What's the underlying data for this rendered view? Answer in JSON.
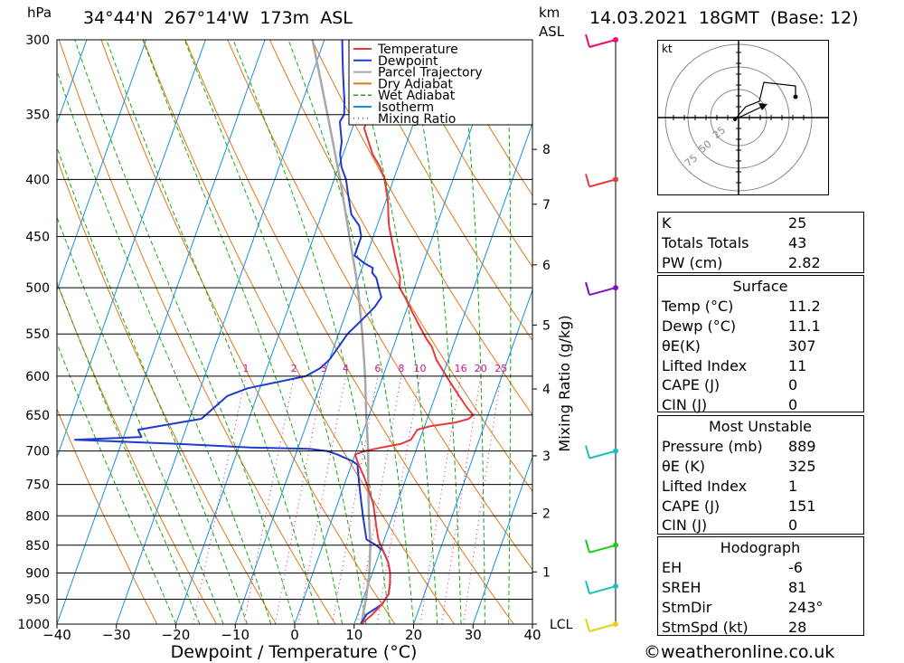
{
  "header": {
    "left_unit": "hPa",
    "location": "34°44'N  267°14'W  173m  ASL",
    "km_label": "km",
    "asl_label": "ASL",
    "datetime": "14.03.2021  18GMT  (Base: 12)"
  },
  "chart_data": {
    "type": "line",
    "xlabel": "Dewpoint / Temperature (°C)",
    "ylabel": "Mixing Ratio (g/kg)",
    "x_ticks": [
      -40,
      -30,
      -20,
      -10,
      0,
      10,
      20,
      30,
      40
    ],
    "xlim": [
      -40,
      40
    ],
    "pressure_levels": [
      300,
      350,
      400,
      450,
      500,
      550,
      600,
      650,
      700,
      750,
      800,
      850,
      900,
      950,
      1000
    ],
    "ylim_hpa": [
      1000,
      300
    ],
    "y_scale": "log",
    "km_ticks": [
      {
        "label": "8",
        "p": 376
      },
      {
        "label": "7",
        "p": 421
      },
      {
        "label": "6",
        "p": 477
      },
      {
        "label": "5",
        "p": 540
      },
      {
        "label": "4",
        "p": 616
      },
      {
        "label": "3",
        "p": 707
      },
      {
        "label": "2",
        "p": 796
      },
      {
        "label": "1",
        "p": 898
      },
      {
        "label": "LCL",
        "p": 1000
      }
    ],
    "mixing_ratio_labels": [
      "1",
      "2",
      "3",
      "4",
      "6",
      "8",
      "10",
      "16",
      "20",
      "25"
    ],
    "legend": [
      "Temperature",
      "Dewpoint",
      "Parcel Trajectory",
      "Dry Adiabat",
      "Wet Adiabat",
      "Isotherm",
      "Mixing Ratio"
    ],
    "legend_placement": "top-right",
    "colors": {
      "temperature": "#e8383c",
      "dewpoint": "#1e3ccc",
      "parcel": "#a8a8a8",
      "dry_adiabat": "#e07818",
      "wet_adiabat": "#18a818",
      "isotherm": "#1890e0",
      "mixing_ratio": "#d8108c"
    },
    "series": [
      {
        "name": "Temperature",
        "points": [
          [
            11.2,
            1000
          ],
          [
            12.5,
            980
          ],
          [
            13.5,
            960
          ],
          [
            14,
            940
          ],
          [
            13.6,
            920
          ],
          [
            13,
            900
          ],
          [
            12,
            880
          ],
          [
            10.5,
            860
          ],
          [
            9,
            840
          ],
          [
            8,
            820
          ],
          [
            7,
            800
          ],
          [
            6,
            780
          ],
          [
            4.5,
            760
          ],
          [
            3,
            740
          ],
          [
            1.2,
            720
          ],
          [
            0,
            705
          ],
          [
            1.5,
            700
          ],
          [
            4,
            695
          ],
          [
            7,
            690
          ],
          [
            8.5,
            684
          ],
          [
            9,
            670
          ],
          [
            11,
            665
          ],
          [
            15,
            660
          ],
          [
            17,
            655
          ],
          [
            17.5,
            650
          ],
          [
            16,
            640
          ],
          [
            14,
            625
          ],
          [
            12,
            610
          ],
          [
            10,
            595
          ],
          [
            8,
            580
          ],
          [
            6.5,
            565
          ],
          [
            5,
            555
          ],
          [
            3,
            540
          ],
          [
            1,
            525
          ],
          [
            -1,
            510
          ],
          [
            -2.5,
            500
          ],
          [
            -3,
            490
          ],
          [
            -4,
            480
          ],
          [
            -5,
            470
          ],
          [
            -6,
            460
          ],
          [
            -7,
            450
          ],
          [
            -8,
            440
          ],
          [
            -8.8,
            430
          ],
          [
            -9.5,
            420
          ],
          [
            -10.5,
            410
          ],
          [
            -11.5,
            400
          ],
          [
            -13,
            390
          ],
          [
            -15,
            380
          ],
          [
            -16.5,
            370
          ],
          [
            -18,
            360
          ],
          [
            -18,
            355
          ],
          [
            -17,
            350
          ],
          [
            -18,
            340
          ],
          [
            -19.5,
            330
          ],
          [
            -21,
            320
          ],
          [
            -22.5,
            310
          ],
          [
            -23.5,
            300
          ]
        ]
      },
      {
        "name": "Dewpoint",
        "points": [
          [
            11.1,
            1000
          ],
          [
            11.5,
            980
          ],
          [
            13.5,
            960
          ],
          [
            14,
            940
          ],
          [
            13.6,
            920
          ],
          [
            13,
            900
          ],
          [
            12,
            880
          ],
          [
            10.5,
            860
          ],
          [
            9,
            850
          ],
          [
            7,
            840
          ],
          [
            6,
            820
          ],
          [
            5,
            800
          ],
          [
            4,
            780
          ],
          [
            3,
            760
          ],
          [
            2,
            740
          ],
          [
            1,
            720
          ],
          [
            0,
            715
          ],
          [
            -3,
            705
          ],
          [
            -5,
            700
          ],
          [
            -8,
            697
          ],
          [
            -18,
            695
          ],
          [
            -30,
            690
          ],
          [
            -45,
            685
          ],
          [
            -48,
            684
          ],
          [
            -37,
            680
          ],
          [
            -38,
            670
          ],
          [
            -28,
            655
          ],
          [
            -27.5,
            650
          ],
          [
            -25,
            625
          ],
          [
            -22,
            615
          ],
          [
            -13,
            600
          ],
          [
            -11,
            590
          ],
          [
            -10,
            580
          ],
          [
            -9.5,
            570
          ],
          [
            -9,
            560
          ],
          [
            -8.5,
            550
          ],
          [
            -7.5,
            540
          ],
          [
            -6.5,
            530
          ],
          [
            -5.5,
            520
          ],
          [
            -5,
            510
          ],
          [
            -6,
            500
          ],
          [
            -7,
            490
          ],
          [
            -8,
            485
          ],
          [
            -8.2,
            480
          ],
          [
            -10,
            475
          ],
          [
            -12,
            468
          ],
          [
            -12,
            450
          ],
          [
            -13,
            440
          ],
          [
            -15,
            430
          ],
          [
            -16,
            420
          ],
          [
            -17,
            410
          ],
          [
            -18,
            400
          ],
          [
            -19.5,
            390
          ],
          [
            -20.5,
            380
          ],
          [
            -21,
            370
          ],
          [
            -22,
            360
          ],
          [
            -22.5,
            355
          ],
          [
            -22.2,
            350
          ],
          [
            -23,
            340
          ],
          [
            -24,
            330
          ],
          [
            -25,
            320
          ],
          [
            -26,
            310
          ],
          [
            -27,
            300
          ]
        ]
      },
      {
        "name": "Parcel Trajectory",
        "points": [
          [
            11.2,
            1000
          ],
          [
            10.5,
            950
          ],
          [
            9.5,
            900
          ],
          [
            8,
            850
          ],
          [
            6,
            800
          ],
          [
            4,
            750
          ],
          [
            2,
            700
          ],
          [
            -0.5,
            650
          ],
          [
            -3,
            600
          ],
          [
            -6,
            550
          ],
          [
            -9.5,
            500
          ],
          [
            -14,
            450
          ],
          [
            -19,
            400
          ],
          [
            -25,
            350
          ],
          [
            -32,
            300
          ]
        ]
      }
    ]
  },
  "hodograph": {
    "unit": "kt",
    "ring_labels": [
      "25",
      "50",
      "75"
    ]
  },
  "indices": {
    "top": [
      {
        "label": "K",
        "value": "25"
      },
      {
        "label": "Totals Totals",
        "value": "43"
      },
      {
        "label": "PW (cm)",
        "value": "2.82"
      }
    ],
    "surface": {
      "title": "Surface",
      "rows": [
        {
          "label": "Temp (°C)",
          "value": "11.2"
        },
        {
          "label": "Dewp (°C)",
          "value": "11.1"
        },
        {
          "label": "θE(K)",
          "value": "307"
        },
        {
          "label": "Lifted Index",
          "value": "11"
        },
        {
          "label": "CAPE (J)",
          "value": "0"
        },
        {
          "label": "CIN (J)",
          "value": "0"
        }
      ]
    },
    "most_unstable": {
      "title": "Most Unstable",
      "rows": [
        {
          "label": "Pressure (mb)",
          "value": "889"
        },
        {
          "label": "θE (K)",
          "value": "325"
        },
        {
          "label": "Lifted Index",
          "value": "1"
        },
        {
          "label": "CAPE (J)",
          "value": "151"
        },
        {
          "label": "CIN (J)",
          "value": "0"
        }
      ]
    },
    "hodograph": {
      "title": "Hodograph",
      "rows": [
        {
          "label": "EH",
          "value": "-6"
        },
        {
          "label": "SREH",
          "value": "81"
        },
        {
          "label": "StmDir",
          "value": "243°"
        },
        {
          "label": "StmSpd (kt)",
          "value": "28"
        }
      ]
    }
  },
  "footer": {
    "copyright": "©weatheronline.co.uk"
  }
}
